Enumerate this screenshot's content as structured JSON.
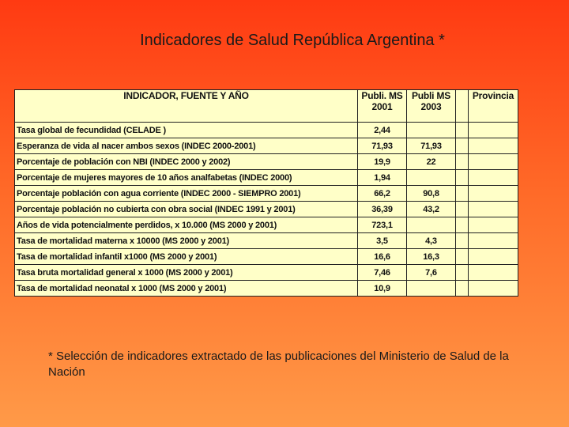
{
  "title": "Indicadores de Salud República Argentina *",
  "table": {
    "header": {
      "indicador": "INDICADOR, FUENTE Y AÑO",
      "ms2001": [
        "Publi. MS",
        "2001"
      ],
      "ms2003": [
        "Publi MS",
        "2003"
      ],
      "provincia": "Provincia"
    },
    "rows": [
      {
        "indicador": "Tasa global de fecundidad (CELADE )",
        "ms2001": "2,44"
      },
      {
        "indicador": "Esperanza de vida al nacer  ambos sexos (INDEC 2000-2001)",
        "ms2001": "71,93",
        "ms2003": "71,93"
      },
      {
        "indicador": "Porcentaje de población con NBI (INDEC 2000 y 2002)",
        "ms2001": "19,9",
        "ms2003": "22"
      },
      {
        "indicador": "Porcentaje de mujeres mayores de 10 años analfabetas (INDEC 2000)",
        "ms2001": "1,94"
      },
      {
        "indicador": "Porcentaje población con agua corriente (INDEC 2000 - SIEMPRO 2001)",
        "ms2001": "66,2",
        "ms2003": "90,8"
      },
      {
        "indicador": "Porcentaje población no cubierta con obra social (INDEC 1991 y 2001)",
        "ms2001": "36,39",
        "ms2003": "43,2"
      },
      {
        "indicador": "Años de vida potencialmente perdidos,  x 10.000 (MS 2000 y 2001)",
        "ms2001": "723,1"
      },
      {
        "indicador": "Tasa de mortalidad materna x 10000 (MS 2000 y 2001)",
        "ms2001": "3,5",
        "ms2003": "4,3"
      },
      {
        "indicador": "Tasa de mortalidad infantil x1000 (MS 2000 y 2001)",
        "ms2001": "16,6",
        "ms2003": "16,3"
      },
      {
        "indicador": "Tasa bruta mortalidad general x 1000 (MS 2000 y 2001)",
        "ms2001": "7,46",
        "ms2003": "7,6"
      },
      {
        "indicador": "Tasa de mortalidad neonatal x 1000 (MS 2000 y 2001)",
        "ms2001": "10,9"
      }
    ]
  },
  "footnote": "* Selección de indicadores extractado de las publicaciones del Ministerio de Salud de la Nación"
}
